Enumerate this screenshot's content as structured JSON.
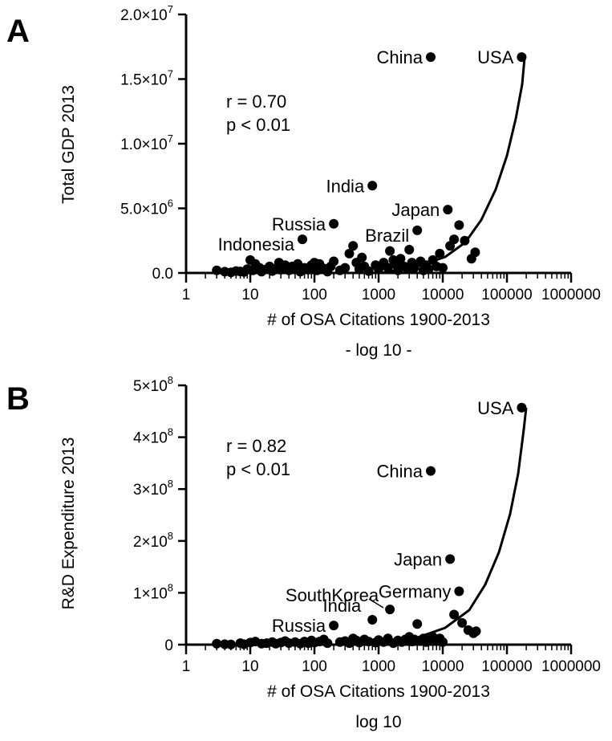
{
  "chart_data": [
    {
      "type": "scatter",
      "panel_label": "A",
      "xlabel": "# of OSA Citations 1900-2013",
      "xlabel_sub": "- log 10 -",
      "ylabel": "Total GDP 2013",
      "x_scale": "log10",
      "xlim": [
        1,
        1000000
      ],
      "ylim": [
        0,
        20000000
      ],
      "x_ticks": [
        1,
        10,
        100,
        1000,
        10000,
        100000,
        1000000
      ],
      "x_tick_labels": [
        "1",
        "10",
        "100",
        "1000",
        "10000",
        "100000",
        "1000000"
      ],
      "y_ticks": [
        {
          "mant": "0.0",
          "exp": ""
        },
        {
          "mant": "5.0×10",
          "exp": "6"
        },
        {
          "mant": "1.0×10",
          "exp": "7"
        },
        {
          "mant": "1.5×10",
          "exp": "7"
        },
        {
          "mant": "2.0×10",
          "exp": "7"
        }
      ],
      "stats": {
        "r": "r = 0.70",
        "p": "p < 0.01"
      },
      "fit_curve": "exponential",
      "labeled_points": [
        {
          "name": "USA",
          "x": 170000,
          "y": 16700000
        },
        {
          "name": "China",
          "x": 6500,
          "y": 16700000
        },
        {
          "name": "India",
          "x": 800,
          "y": 6750000
        },
        {
          "name": "Japan",
          "x": 12000,
          "y": 4900000
        },
        {
          "name": "Russia",
          "x": 200,
          "y": 3800000
        },
        {
          "name": "Brazil",
          "x": 4000,
          "y": 3300000
        },
        {
          "name": "Indonesia",
          "x": 65,
          "y": 2600000
        }
      ],
      "points": [
        {
          "x": 3,
          "y": 200000
        },
        {
          "x": 4,
          "y": 100000
        },
        {
          "x": 5,
          "y": 50000
        },
        {
          "x": 6,
          "y": 150000
        },
        {
          "x": 7,
          "y": 120000
        },
        {
          "x": 8,
          "y": 80000
        },
        {
          "x": 9,
          "y": 300000
        },
        {
          "x": 10,
          "y": 1000000
        },
        {
          "x": 11,
          "y": 200000
        },
        {
          "x": 12,
          "y": 700000
        },
        {
          "x": 14,
          "y": 400000
        },
        {
          "x": 15,
          "y": 100000
        },
        {
          "x": 18,
          "y": 300000
        },
        {
          "x": 20,
          "y": 500000
        },
        {
          "x": 22,
          "y": 150000
        },
        {
          "x": 25,
          "y": 350000
        },
        {
          "x": 28,
          "y": 800000
        },
        {
          "x": 30,
          "y": 250000
        },
        {
          "x": 35,
          "y": 600000
        },
        {
          "x": 40,
          "y": 200000
        },
        {
          "x": 45,
          "y": 500000
        },
        {
          "x": 50,
          "y": 300000
        },
        {
          "x": 55,
          "y": 700000
        },
        {
          "x": 60,
          "y": 100000
        },
        {
          "x": 70,
          "y": 400000
        },
        {
          "x": 80,
          "y": 250000
        },
        {
          "x": 90,
          "y": 600000
        },
        {
          "x": 100,
          "y": 800000
        },
        {
          "x": 110,
          "y": 200000
        },
        {
          "x": 120,
          "y": 700000
        },
        {
          "x": 140,
          "y": 350000
        },
        {
          "x": 160,
          "y": 100000
        },
        {
          "x": 180,
          "y": 500000
        },
        {
          "x": 200,
          "y": 900000
        },
        {
          "x": 250,
          "y": 200000
        },
        {
          "x": 300,
          "y": 400000
        },
        {
          "x": 350,
          "y": 1500000
        },
        {
          "x": 400,
          "y": 2100000
        },
        {
          "x": 450,
          "y": 800000
        },
        {
          "x": 500,
          "y": 300000
        },
        {
          "x": 550,
          "y": 1200000
        },
        {
          "x": 600,
          "y": 500000
        },
        {
          "x": 700,
          "y": 150000
        },
        {
          "x": 900,
          "y": 600000
        },
        {
          "x": 1000,
          "y": 300000
        },
        {
          "x": 1200,
          "y": 800000
        },
        {
          "x": 1400,
          "y": 400000
        },
        {
          "x": 1500,
          "y": 1700000
        },
        {
          "x": 1700,
          "y": 1000000
        },
        {
          "x": 1900,
          "y": 600000
        },
        {
          "x": 2000,
          "y": 200000
        },
        {
          "x": 2200,
          "y": 1100000
        },
        {
          "x": 2500,
          "y": 500000
        },
        {
          "x": 2800,
          "y": 300000
        },
        {
          "x": 3000,
          "y": 1800000
        },
        {
          "x": 3300,
          "y": 800000
        },
        {
          "x": 3600,
          "y": 400000
        },
        {
          "x": 4500,
          "y": 900000
        },
        {
          "x": 5000,
          "y": 200000
        },
        {
          "x": 5500,
          "y": 600000
        },
        {
          "x": 6000,
          "y": 300000
        },
        {
          "x": 7000,
          "y": 1000000
        },
        {
          "x": 8000,
          "y": 500000
        },
        {
          "x": 9000,
          "y": 1500000
        },
        {
          "x": 10000,
          "y": 400000
        },
        {
          "x": 13000,
          "y": 2100000
        },
        {
          "x": 15000,
          "y": 2600000
        },
        {
          "x": 18000,
          "y": 3700000
        },
        {
          "x": 22000,
          "y": 2500000
        },
        {
          "x": 28000,
          "y": 1100000
        },
        {
          "x": 32000,
          "y": 1600000
        }
      ]
    },
    {
      "type": "scatter",
      "panel_label": "B",
      "xlabel": "# of OSA Citations 1900-2013",
      "xlabel_sub": "log 10",
      "ylabel": "R&D Expenditure 2013",
      "x_scale": "log10",
      "xlim": [
        1,
        1000000
      ],
      "ylim": [
        0,
        500000000
      ],
      "x_ticks": [
        1,
        10,
        100,
        1000,
        10000,
        100000,
        1000000
      ],
      "x_tick_labels": [
        "1",
        "10",
        "100",
        "1000",
        "10000",
        "100000",
        "1000000"
      ],
      "y_ticks": [
        {
          "mant": "0",
          "exp": ""
        },
        {
          "mant": "1×10",
          "exp": "8"
        },
        {
          "mant": "2×10",
          "exp": "8"
        },
        {
          "mant": "3×10",
          "exp": "8"
        },
        {
          "mant": "4×10",
          "exp": "8"
        },
        {
          "mant": "5×10",
          "exp": "8"
        }
      ],
      "stats": {
        "r": "r = 0.82",
        "p": "p < 0.01"
      },
      "fit_curve": "exponential",
      "labeled_points": [
        {
          "name": "USA",
          "x": 170000,
          "y": 457000000
        },
        {
          "name": "China",
          "x": 6500,
          "y": 335000000
        },
        {
          "name": "Japan",
          "x": 13000,
          "y": 165000000
        },
        {
          "name": "Germany",
          "x": 18000,
          "y": 103000000
        },
        {
          "name": "SouthKorea",
          "x": 1500,
          "y": 68000000
        },
        {
          "name": "India",
          "x": 800,
          "y": 48000000
        },
        {
          "name": "Russia",
          "x": 200,
          "y": 37000000
        }
      ],
      "points": [
        {
          "x": 3,
          "y": 2000000
        },
        {
          "x": 4,
          "y": 1000000
        },
        {
          "x": 5,
          "y": 500000
        },
        {
          "x": 7,
          "y": 3000000
        },
        {
          "x": 8,
          "y": 1000000
        },
        {
          "x": 10,
          "y": 4000000
        },
        {
          "x": 12,
          "y": 6000000
        },
        {
          "x": 15,
          "y": 2000000
        },
        {
          "x": 18,
          "y": 3000000
        },
        {
          "x": 22,
          "y": 5000000
        },
        {
          "x": 25,
          "y": 2000000
        },
        {
          "x": 30,
          "y": 4000000
        },
        {
          "x": 35,
          "y": 7000000
        },
        {
          "x": 40,
          "y": 3000000
        },
        {
          "x": 50,
          "y": 5000000
        },
        {
          "x": 60,
          "y": 2000000
        },
        {
          "x": 70,
          "y": 6000000
        },
        {
          "x": 80,
          "y": 3000000
        },
        {
          "x": 90,
          "y": 8000000
        },
        {
          "x": 100,
          "y": 4000000
        },
        {
          "x": 120,
          "y": 6000000
        },
        {
          "x": 140,
          "y": 10000000
        },
        {
          "x": 160,
          "y": 3000000
        },
        {
          "x": 250,
          "y": 5000000
        },
        {
          "x": 300,
          "y": 7000000
        },
        {
          "x": 350,
          "y": 3000000
        },
        {
          "x": 400,
          "y": 12000000
        },
        {
          "x": 450,
          "y": 8000000
        },
        {
          "x": 500,
          "y": 4000000
        },
        {
          "x": 600,
          "y": 10000000
        },
        {
          "x": 700,
          "y": 6000000
        },
        {
          "x": 900,
          "y": 4000000
        },
        {
          "x": 1000,
          "y": 9000000
        },
        {
          "x": 1200,
          "y": 5000000
        },
        {
          "x": 1400,
          "y": 12000000
        },
        {
          "x": 1700,
          "y": 3000000
        },
        {
          "x": 2000,
          "y": 8000000
        },
        {
          "x": 2300,
          "y": 5000000
        },
        {
          "x": 2600,
          "y": 10000000
        },
        {
          "x": 3000,
          "y": 15000000
        },
        {
          "x": 3300,
          "y": 6000000
        },
        {
          "x": 3600,
          "y": 10000000
        },
        {
          "x": 4000,
          "y": 40000000
        },
        {
          "x": 4500,
          "y": 8000000
        },
        {
          "x": 5000,
          "y": 12000000
        },
        {
          "x": 5500,
          "y": 5000000
        },
        {
          "x": 6000,
          "y": 9000000
        },
        {
          "x": 7000,
          "y": 15000000
        },
        {
          "x": 8000,
          "y": 7000000
        },
        {
          "x": 9000,
          "y": 12000000
        },
        {
          "x": 10000,
          "y": 5000000
        },
        {
          "x": 15000,
          "y": 58000000
        },
        {
          "x": 20000,
          "y": 42000000
        },
        {
          "x": 25000,
          "y": 28000000
        },
        {
          "x": 30000,
          "y": 22000000
        },
        {
          "x": 33000,
          "y": 26000000
        }
      ]
    }
  ]
}
